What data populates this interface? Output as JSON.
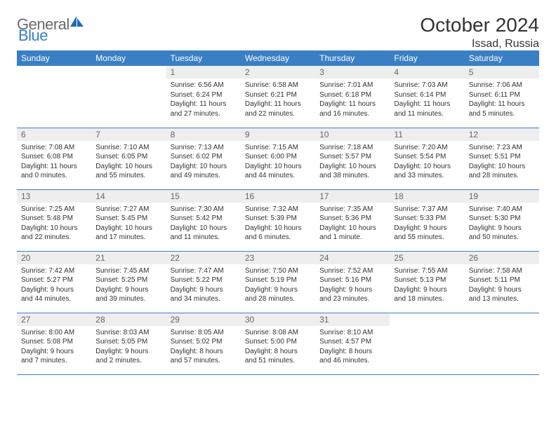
{
  "brand": {
    "part1": "General",
    "part2": "Blue"
  },
  "title": "October 2024",
  "location": "Issad, Russia",
  "colors": {
    "header_bg": "#3a7fc4",
    "header_text": "#ffffff",
    "daynum_bg": "#eeeeee",
    "daynum_text": "#666666",
    "border": "#3a7fc4",
    "body_text": "#333333",
    "logo_gray": "#6a6a6a",
    "logo_blue": "#3a7fc4",
    "page_bg": "#ffffff"
  },
  "daysOfWeek": [
    "Sunday",
    "Monday",
    "Tuesday",
    "Wednesday",
    "Thursday",
    "Friday",
    "Saturday"
  ],
  "weeks": [
    [
      null,
      null,
      {
        "n": "1",
        "sr": "Sunrise: 6:56 AM",
        "ss": "Sunset: 6:24 PM",
        "d1": "Daylight: 11 hours",
        "d2": "and 27 minutes."
      },
      {
        "n": "2",
        "sr": "Sunrise: 6:58 AM",
        "ss": "Sunset: 6:21 PM",
        "d1": "Daylight: 11 hours",
        "d2": "and 22 minutes."
      },
      {
        "n": "3",
        "sr": "Sunrise: 7:01 AM",
        "ss": "Sunset: 6:18 PM",
        "d1": "Daylight: 11 hours",
        "d2": "and 16 minutes."
      },
      {
        "n": "4",
        "sr": "Sunrise: 7:03 AM",
        "ss": "Sunset: 6:14 PM",
        "d1": "Daylight: 11 hours",
        "d2": "and 11 minutes."
      },
      {
        "n": "5",
        "sr": "Sunrise: 7:06 AM",
        "ss": "Sunset: 6:11 PM",
        "d1": "Daylight: 11 hours",
        "d2": "and 5 minutes."
      }
    ],
    [
      {
        "n": "6",
        "sr": "Sunrise: 7:08 AM",
        "ss": "Sunset: 6:08 PM",
        "d1": "Daylight: 11 hours",
        "d2": "and 0 minutes."
      },
      {
        "n": "7",
        "sr": "Sunrise: 7:10 AM",
        "ss": "Sunset: 6:05 PM",
        "d1": "Daylight: 10 hours",
        "d2": "and 55 minutes."
      },
      {
        "n": "8",
        "sr": "Sunrise: 7:13 AM",
        "ss": "Sunset: 6:02 PM",
        "d1": "Daylight: 10 hours",
        "d2": "and 49 minutes."
      },
      {
        "n": "9",
        "sr": "Sunrise: 7:15 AM",
        "ss": "Sunset: 6:00 PM",
        "d1": "Daylight: 10 hours",
        "d2": "and 44 minutes."
      },
      {
        "n": "10",
        "sr": "Sunrise: 7:18 AM",
        "ss": "Sunset: 5:57 PM",
        "d1": "Daylight: 10 hours",
        "d2": "and 38 minutes."
      },
      {
        "n": "11",
        "sr": "Sunrise: 7:20 AM",
        "ss": "Sunset: 5:54 PM",
        "d1": "Daylight: 10 hours",
        "d2": "and 33 minutes."
      },
      {
        "n": "12",
        "sr": "Sunrise: 7:23 AM",
        "ss": "Sunset: 5:51 PM",
        "d1": "Daylight: 10 hours",
        "d2": "and 28 minutes."
      }
    ],
    [
      {
        "n": "13",
        "sr": "Sunrise: 7:25 AM",
        "ss": "Sunset: 5:48 PM",
        "d1": "Daylight: 10 hours",
        "d2": "and 22 minutes."
      },
      {
        "n": "14",
        "sr": "Sunrise: 7:27 AM",
        "ss": "Sunset: 5:45 PM",
        "d1": "Daylight: 10 hours",
        "d2": "and 17 minutes."
      },
      {
        "n": "15",
        "sr": "Sunrise: 7:30 AM",
        "ss": "Sunset: 5:42 PM",
        "d1": "Daylight: 10 hours",
        "d2": "and 11 minutes."
      },
      {
        "n": "16",
        "sr": "Sunrise: 7:32 AM",
        "ss": "Sunset: 5:39 PM",
        "d1": "Daylight: 10 hours",
        "d2": "and 6 minutes."
      },
      {
        "n": "17",
        "sr": "Sunrise: 7:35 AM",
        "ss": "Sunset: 5:36 PM",
        "d1": "Daylight: 10 hours",
        "d2": "and 1 minute."
      },
      {
        "n": "18",
        "sr": "Sunrise: 7:37 AM",
        "ss": "Sunset: 5:33 PM",
        "d1": "Daylight: 9 hours",
        "d2": "and 55 minutes."
      },
      {
        "n": "19",
        "sr": "Sunrise: 7:40 AM",
        "ss": "Sunset: 5:30 PM",
        "d1": "Daylight: 9 hours",
        "d2": "and 50 minutes."
      }
    ],
    [
      {
        "n": "20",
        "sr": "Sunrise: 7:42 AM",
        "ss": "Sunset: 5:27 PM",
        "d1": "Daylight: 9 hours",
        "d2": "and 44 minutes."
      },
      {
        "n": "21",
        "sr": "Sunrise: 7:45 AM",
        "ss": "Sunset: 5:25 PM",
        "d1": "Daylight: 9 hours",
        "d2": "and 39 minutes."
      },
      {
        "n": "22",
        "sr": "Sunrise: 7:47 AM",
        "ss": "Sunset: 5:22 PM",
        "d1": "Daylight: 9 hours",
        "d2": "and 34 minutes."
      },
      {
        "n": "23",
        "sr": "Sunrise: 7:50 AM",
        "ss": "Sunset: 5:19 PM",
        "d1": "Daylight: 9 hours",
        "d2": "and 28 minutes."
      },
      {
        "n": "24",
        "sr": "Sunrise: 7:52 AM",
        "ss": "Sunset: 5:16 PM",
        "d1": "Daylight: 9 hours",
        "d2": "and 23 minutes."
      },
      {
        "n": "25",
        "sr": "Sunrise: 7:55 AM",
        "ss": "Sunset: 5:13 PM",
        "d1": "Daylight: 9 hours",
        "d2": "and 18 minutes."
      },
      {
        "n": "26",
        "sr": "Sunrise: 7:58 AM",
        "ss": "Sunset: 5:11 PM",
        "d1": "Daylight: 9 hours",
        "d2": "and 13 minutes."
      }
    ],
    [
      {
        "n": "27",
        "sr": "Sunrise: 8:00 AM",
        "ss": "Sunset: 5:08 PM",
        "d1": "Daylight: 9 hours",
        "d2": "and 7 minutes."
      },
      {
        "n": "28",
        "sr": "Sunrise: 8:03 AM",
        "ss": "Sunset: 5:05 PM",
        "d1": "Daylight: 9 hours",
        "d2": "and 2 minutes."
      },
      {
        "n": "29",
        "sr": "Sunrise: 8:05 AM",
        "ss": "Sunset: 5:02 PM",
        "d1": "Daylight: 8 hours",
        "d2": "and 57 minutes."
      },
      {
        "n": "30",
        "sr": "Sunrise: 8:08 AM",
        "ss": "Sunset: 5:00 PM",
        "d1": "Daylight: 8 hours",
        "d2": "and 51 minutes."
      },
      {
        "n": "31",
        "sr": "Sunrise: 8:10 AM",
        "ss": "Sunset: 4:57 PM",
        "d1": "Daylight: 8 hours",
        "d2": "and 46 minutes."
      },
      null,
      null
    ]
  ]
}
